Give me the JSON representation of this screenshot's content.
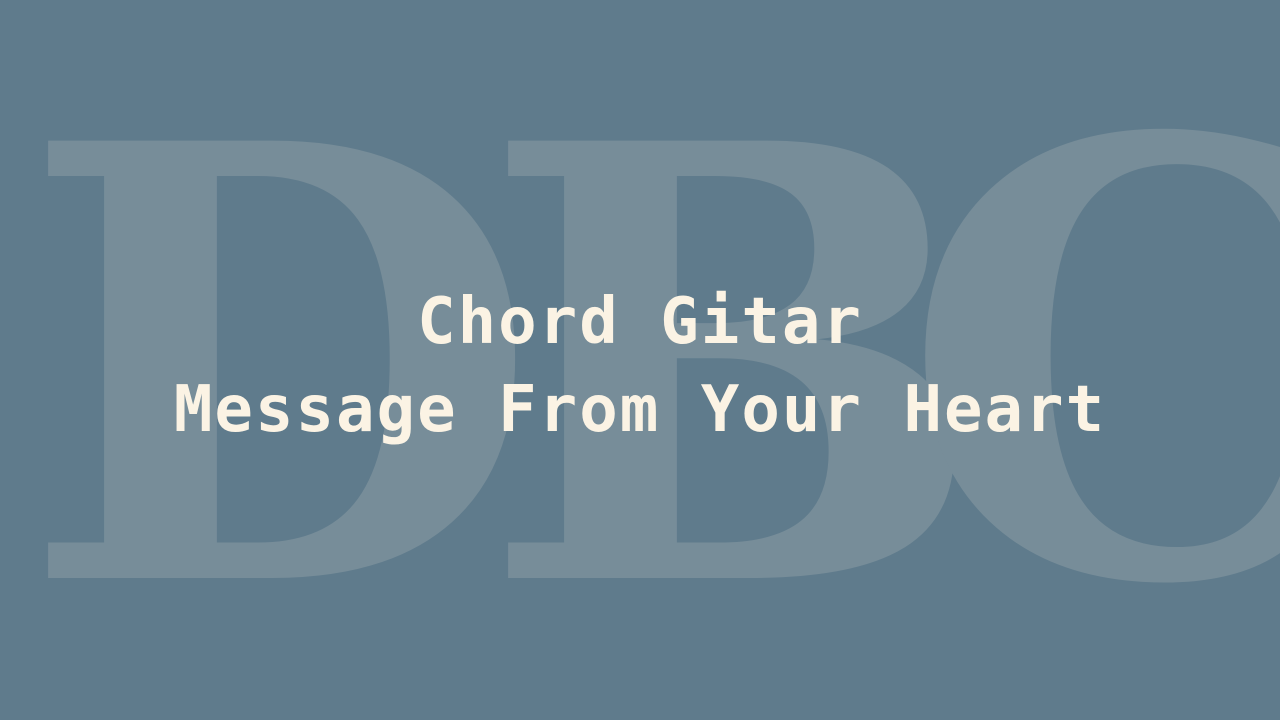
{
  "watermark": {
    "letters": [
      "D",
      "B",
      "C"
    ],
    "color": "#778d99"
  },
  "background_color": "#5f7b8c",
  "title": {
    "line1": "Chord Gitar",
    "line2": "Message From Your Heart",
    "color": "#fbf3e4"
  }
}
